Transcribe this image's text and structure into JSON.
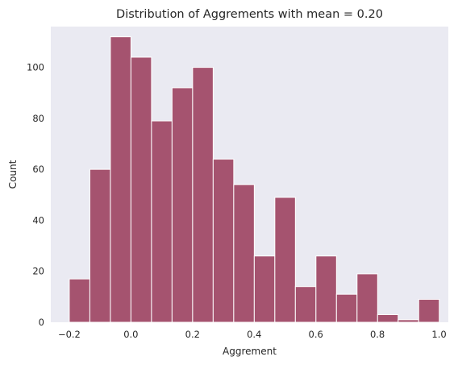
{
  "chart_data": {
    "type": "bar",
    "title": "Distribution of Aggrements with mean = 0.20",
    "xlabel": "Aggrement",
    "ylabel": "Count",
    "xlim": [
      -0.26,
      1.03
    ],
    "ylim": [
      0,
      116
    ],
    "grid": false,
    "legend": false,
    "x_ticks": [
      -0.2,
      0.0,
      0.2,
      0.4,
      0.6,
      0.8,
      1.0
    ],
    "x_tick_labels": [
      "−0.2",
      "0.0",
      "0.2",
      "0.4",
      "0.6",
      "0.8",
      "1.0"
    ],
    "y_ticks": [
      0,
      20,
      40,
      60,
      80,
      100
    ],
    "y_tick_labels": [
      "0",
      "20",
      "40",
      "60",
      "80",
      "100"
    ],
    "bin_start": -0.2,
    "bin_width": 0.0667,
    "values": [
      17,
      60,
      112,
      104,
      79,
      92,
      100,
      64,
      54,
      26,
      49,
      14,
      26,
      11,
      19,
      3,
      1,
      9
    ],
    "bar_color": "#a5536f",
    "bar_edge_color": "#ffffff",
    "plot_background": "#eaeaf2"
  }
}
